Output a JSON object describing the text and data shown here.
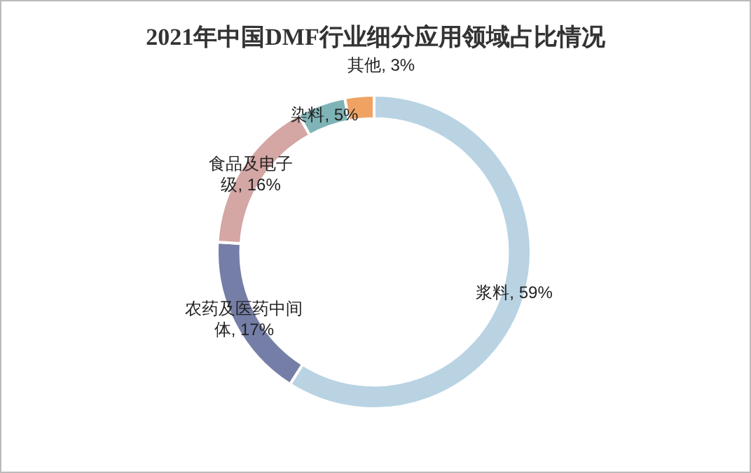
{
  "chart_data": {
    "type": "donut",
    "title": "2021年中国DMF行业细分应用领域占比情况",
    "categories": [
      "浆料",
      "农药及医药中间体",
      "食品及电子级",
      "染料",
      "其他"
    ],
    "values": [
      59,
      17,
      16,
      5,
      3
    ],
    "value_labels": [
      "59%",
      "17%",
      "16%",
      "5%",
      "3%"
    ],
    "colors": [
      "#b9d3e3",
      "#757ea6",
      "#d4a6a4",
      "#7fb4b6",
      "#f0a262"
    ],
    "legend": false
  }
}
